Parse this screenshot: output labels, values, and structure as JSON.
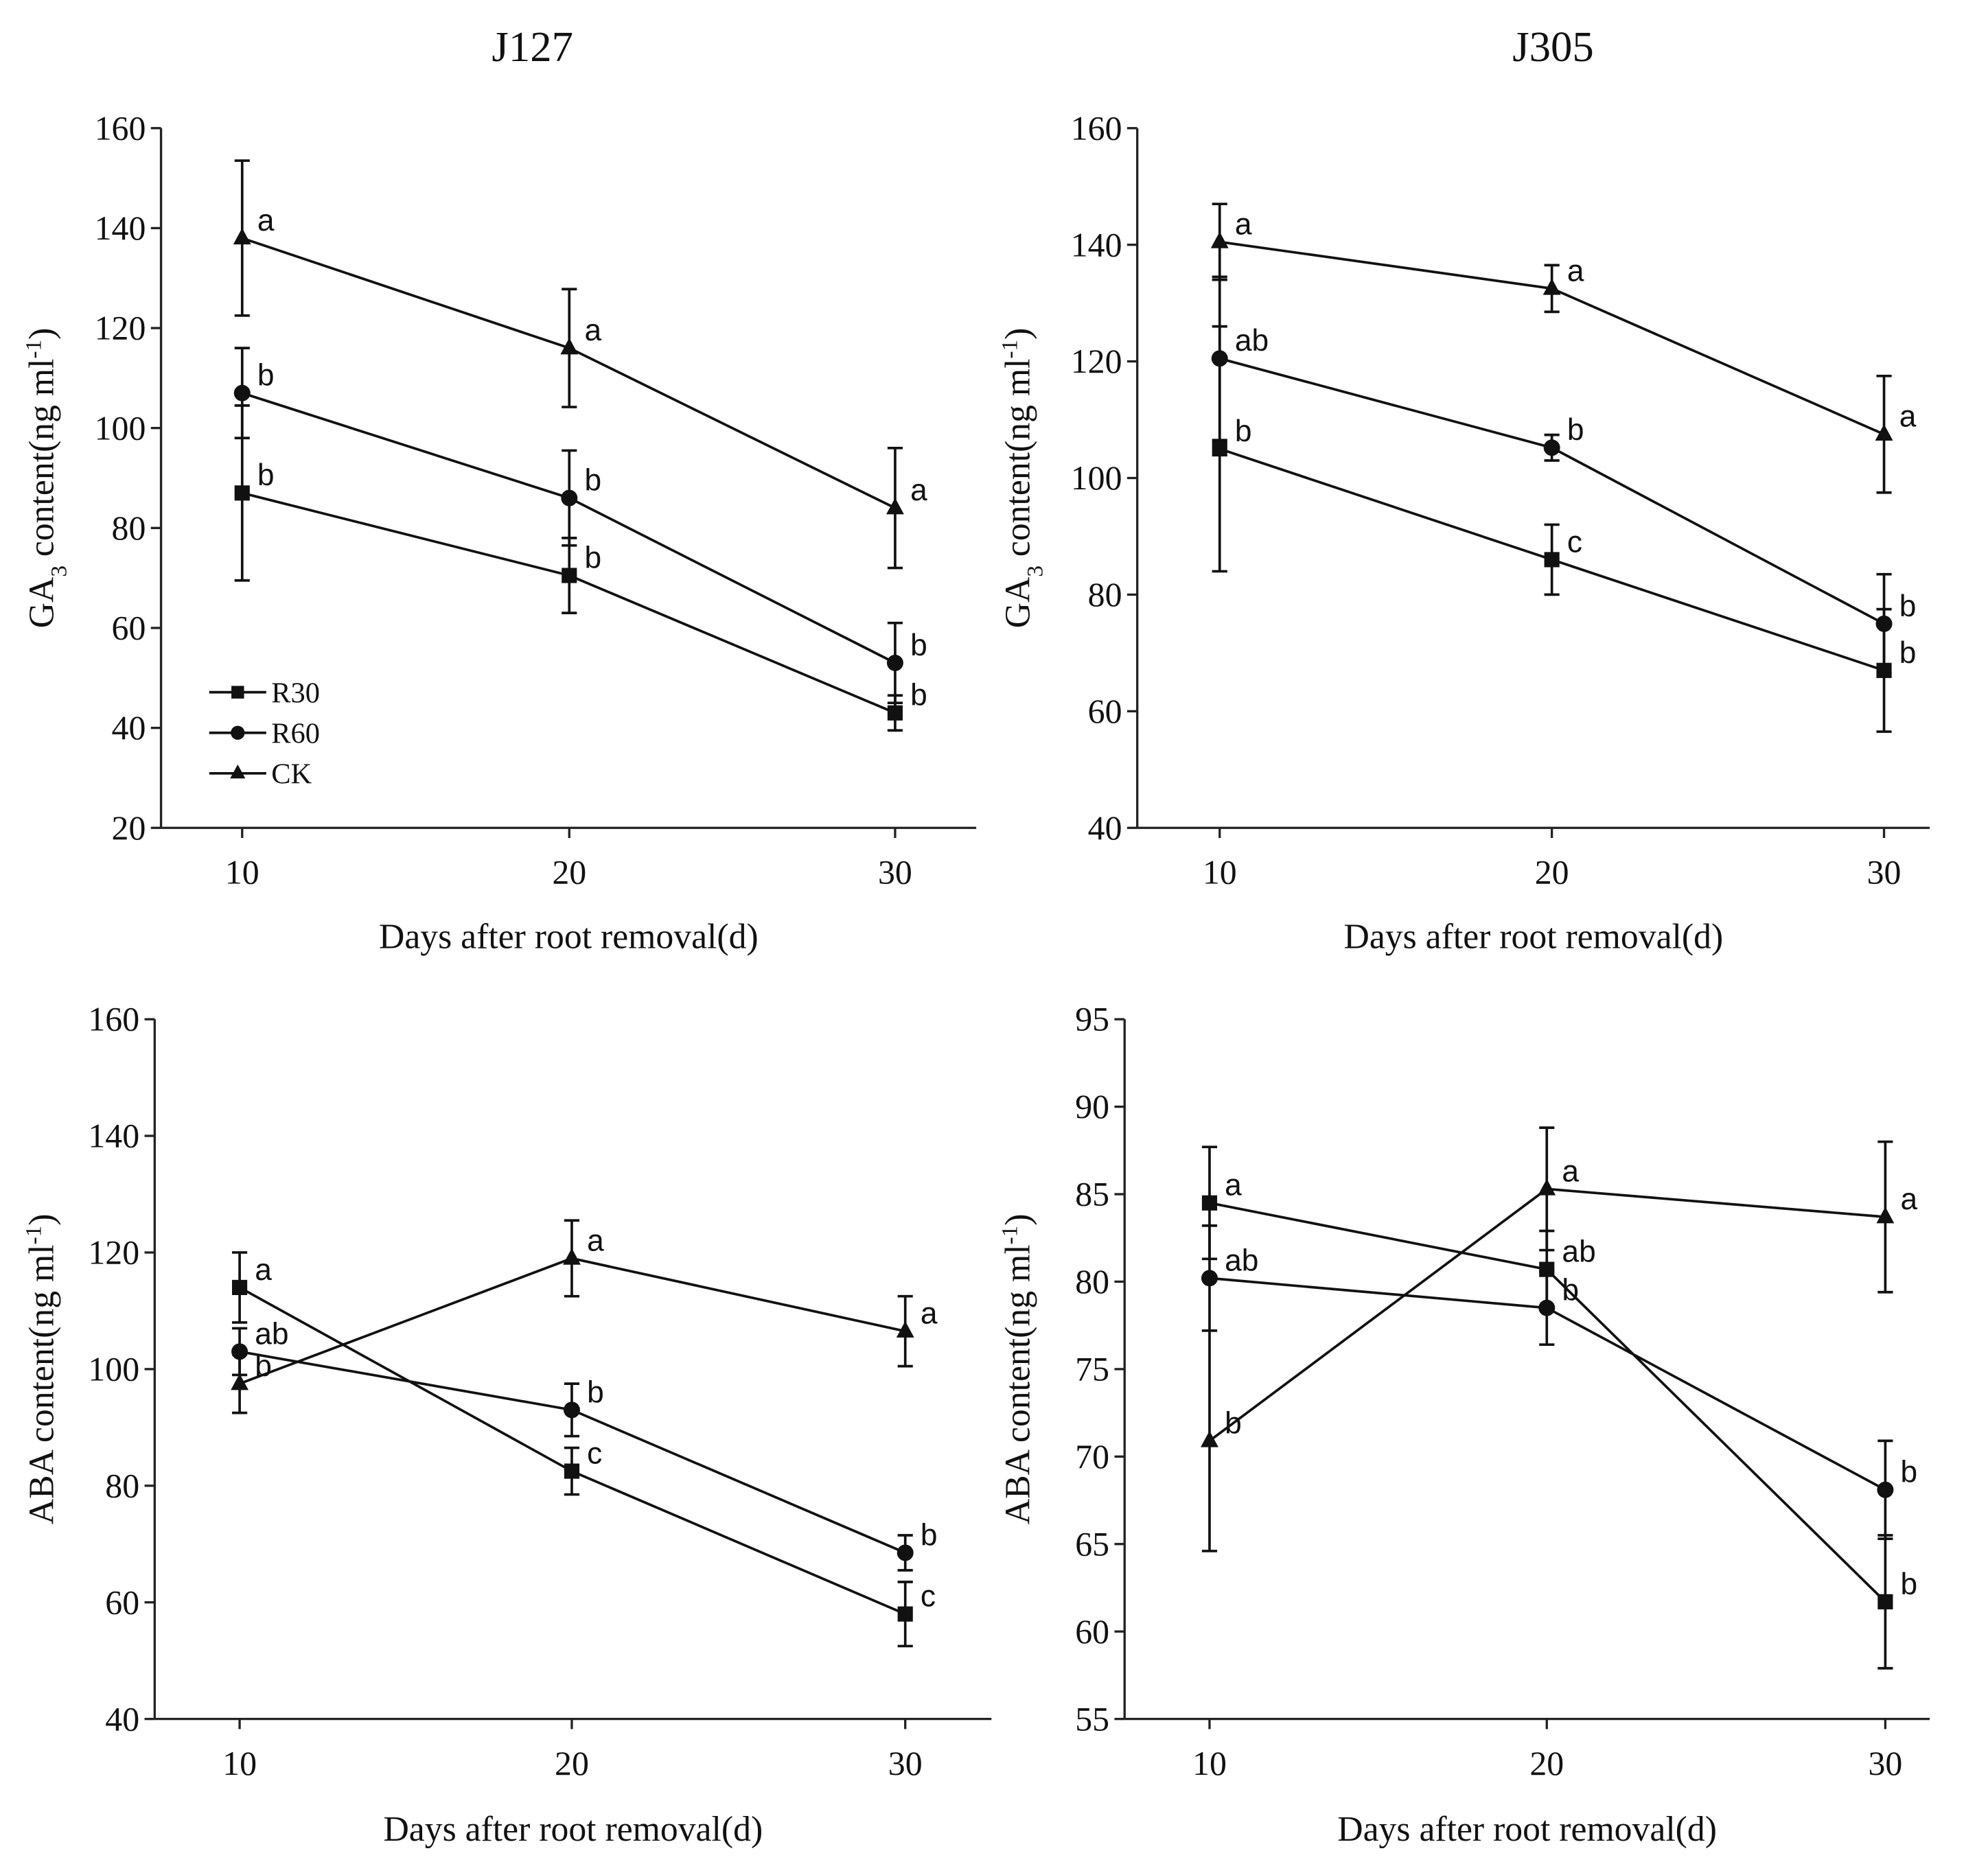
{
  "chart_data": [
    {
      "type": "line",
      "title": "J127",
      "xlabel": "Days after root removal(d)",
      "ylabel": {
        "pre": "GA",
        "sub": "3",
        "mid": " content(ng ml",
        "sup": "-1",
        "post": ")"
      },
      "x": [
        10,
        20,
        30
      ],
      "ylim": [
        20,
        160
      ],
      "yticks": [
        20,
        40,
        60,
        80,
        100,
        120,
        140,
        160
      ],
      "legend": {
        "placement": "bottom-left",
        "entries": [
          "R30",
          "R60",
          "CK"
        ]
      },
      "series": [
        {
          "name": "R30",
          "marker": "square",
          "values": [
            87,
            70.5,
            43
          ],
          "errors": [
            17.5,
            7.5,
            3.5
          ],
          "letters": [
            "b",
            "b",
            "b"
          ]
        },
        {
          "name": "R60",
          "marker": "circle",
          "values": [
            107,
            86,
            53
          ],
          "errors": [
            9,
            9.5,
            8
          ],
          "letters": [
            "b",
            "b",
            "b"
          ]
        },
        {
          "name": "CK",
          "marker": "triangle",
          "values": [
            138,
            116,
            84
          ],
          "errors": [
            15.5,
            11.8,
            12
          ],
          "letters": [
            "a",
            "a",
            "a"
          ]
        }
      ]
    },
    {
      "type": "line",
      "title": "J305",
      "xlabel": "Days after root removal(d)",
      "ylabel": {
        "pre": "GA",
        "sub": "3",
        "mid": " content(ng ml",
        "sup": "-1",
        "post": ")"
      },
      "x": [
        10,
        20,
        30
      ],
      "ylim": [
        40,
        160
      ],
      "yticks": [
        40,
        60,
        80,
        100,
        120,
        140,
        160
      ],
      "series": [
        {
          "name": "R30",
          "marker": "square",
          "values": [
            105,
            86,
            67
          ],
          "errors": [
            21,
            6,
            10.5
          ],
          "letters": [
            "b",
            "c",
            "b"
          ]
        },
        {
          "name": "R60",
          "marker": "circle",
          "values": [
            120.5,
            105.2,
            75
          ],
          "errors": [
            14,
            2.2,
            8.5
          ],
          "letters": [
            "ab",
            "b",
            "b"
          ]
        },
        {
          "name": "CK",
          "marker": "triangle",
          "values": [
            140.5,
            132.5,
            107.5
          ],
          "errors": [
            6.5,
            4,
            10
          ],
          "letters": [
            "a",
            "a",
            "a"
          ]
        }
      ]
    },
    {
      "type": "line",
      "title": "",
      "xlabel": "Days after root removal(d)",
      "ylabel": {
        "pre": "ABA content(ng ml",
        "sub": "",
        "mid": "",
        "sup": "-1",
        "post": ")"
      },
      "x": [
        10,
        20,
        30
      ],
      "ylim": [
        40,
        160
      ],
      "yticks": [
        40,
        60,
        80,
        100,
        120,
        140,
        160
      ],
      "series": [
        {
          "name": "R30",
          "marker": "square",
          "values": [
            114,
            82.5,
            58
          ],
          "errors": [
            6,
            4,
            5.5
          ],
          "letters": [
            "a",
            "c",
            "c"
          ]
        },
        {
          "name": "R60",
          "marker": "circle",
          "values": [
            103,
            93,
            68.5
          ],
          "errors": [
            4,
            4.5,
            3
          ],
          "letters": [
            "ab",
            "b",
            "b"
          ]
        },
        {
          "name": "CK",
          "marker": "triangle",
          "values": [
            97.5,
            119,
            106.5
          ],
          "errors": [
            5,
            6.5,
            6
          ],
          "letters": [
            "b",
            "a",
            "a"
          ]
        }
      ]
    },
    {
      "type": "line",
      "title": "",
      "xlabel": "Days after root removal(d)",
      "ylabel": {
        "pre": "ABA content(ng ml",
        "sub": "",
        "mid": "",
        "sup": "-1",
        "post": ")"
      },
      "x": [
        10,
        20,
        30
      ],
      "ylim": [
        55,
        95
      ],
      "yticks": [
        55,
        60,
        65,
        70,
        75,
        80,
        85,
        90,
        95
      ],
      "series": [
        {
          "name": "R30",
          "marker": "square",
          "values": [
            84.5,
            80.7,
            61.7
          ],
          "errors": [
            3.2,
            2.2,
            3.8
          ],
          "letters": [
            "a",
            "ab",
            "b"
          ]
        },
        {
          "name": "R60",
          "marker": "circle",
          "values": [
            80.2,
            78.5,
            68.1
          ],
          "errors": [
            3,
            2.1,
            2.8
          ],
          "letters": [
            "ab",
            "b",
            "b"
          ]
        },
        {
          "name": "CK",
          "marker": "triangle",
          "values": [
            70.9,
            85.3,
            83.7
          ],
          "errors": [
            6.3,
            3.5,
            4.3
          ],
          "letters": [
            "b",
            "a",
            "a"
          ]
        }
      ]
    }
  ]
}
